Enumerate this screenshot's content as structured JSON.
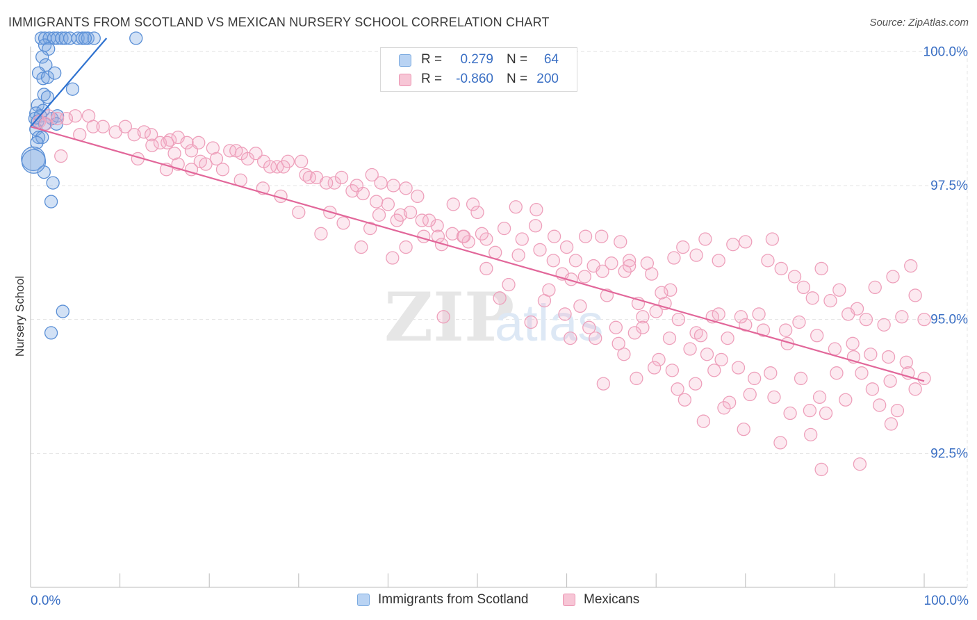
{
  "header": {
    "title": "IMMIGRANTS FROM SCOTLAND VS MEXICAN NURSERY SCHOOL CORRELATION CHART",
    "source": "Source: ZipAtlas.com"
  },
  "watermark": {
    "zip": "ZIP",
    "atlas": "atlas"
  },
  "legend": {
    "r_label": "R =",
    "n_label": "N =",
    "series": [
      {
        "name": "Immigrants from Scotland",
        "r": "0.279",
        "n": "64",
        "color": "#7aaae0",
        "fill": "#b9d3f3"
      },
      {
        "name": "Mexicans",
        "r": "-0.860",
        "n": "200",
        "color": "#eb92b0",
        "fill": "#f7c6d6"
      }
    ]
  },
  "chart_data": {
    "type": "scatter",
    "title": "IMMIGRANTS FROM SCOTLAND VS MEXICAN NURSERY SCHOOL CORRELATION CHART",
    "xlabel": "",
    "ylabel": "Nursery School",
    "xlim": [
      0,
      100
    ],
    "ylim": [
      90.0,
      100.25
    ],
    "x_tick_labels": [
      "0.0%",
      "100.0%"
    ],
    "y_ticks": [
      {
        "value": 100.0,
        "label": "100.0%"
      },
      {
        "value": 97.5,
        "label": "97.5%"
      },
      {
        "value": 95.0,
        "label": "95.0%"
      },
      {
        "value": 92.5,
        "label": "92.5%"
      }
    ],
    "grid": true,
    "series": [
      {
        "name": "Immigrants from Scotland",
        "color": "#4a86d8",
        "trend": {
          "x": [
            0.0,
            8.5
          ],
          "y": [
            98.6,
            100.25
          ]
        },
        "points": [
          [
            1.2,
            100.25
          ],
          [
            1.6,
            100.25
          ],
          [
            2.1,
            100.25
          ],
          [
            2.6,
            100.25
          ],
          [
            3.0,
            100.25
          ],
          [
            3.5,
            100.25
          ],
          [
            3.9,
            100.25
          ],
          [
            4.4,
            100.25
          ],
          [
            5.3,
            100.25
          ],
          [
            5.8,
            100.25
          ],
          [
            6.4,
            100.25
          ],
          [
            7.1,
            100.25
          ],
          [
            6.1,
            100.25
          ],
          [
            11.8,
            100.25
          ],
          [
            1.6,
            100.12
          ],
          [
            2.0,
            100.05
          ],
          [
            1.3,
            99.9
          ],
          [
            1.7,
            99.75
          ],
          [
            0.9,
            99.6
          ],
          [
            1.4,
            99.5
          ],
          [
            1.9,
            99.52
          ],
          [
            2.7,
            99.6
          ],
          [
            4.7,
            99.3
          ],
          [
            1.5,
            99.2
          ],
          [
            1.9,
            99.15
          ],
          [
            0.8,
            99.0
          ],
          [
            1.4,
            98.9
          ],
          [
            0.6,
            98.85
          ],
          [
            1.1,
            98.8
          ],
          [
            2.4,
            98.75
          ],
          [
            3.0,
            98.8
          ],
          [
            0.5,
            98.75
          ],
          [
            0.8,
            98.7
          ],
          [
            1.6,
            98.65
          ],
          [
            2.9,
            98.65
          ],
          [
            0.6,
            98.55
          ],
          [
            0.9,
            98.4
          ],
          [
            1.3,
            98.4
          ],
          [
            0.7,
            98.3
          ],
          [
            0.3,
            98.0
          ],
          [
            1.5,
            97.75
          ],
          [
            2.5,
            97.55
          ],
          [
            2.3,
            97.2
          ],
          [
            3.6,
            95.15
          ],
          [
            2.3,
            94.75
          ],
          [
            0.35,
            97.95
          ]
        ]
      },
      {
        "name": "Mexicans",
        "color": "#e8739a",
        "trend": {
          "x": [
            0.0,
            100.0
          ],
          "y": [
            98.6,
            93.85
          ]
        },
        "points": [
          [
            1.0,
            98.7
          ],
          [
            2.0,
            98.8
          ],
          [
            3.0,
            98.75
          ],
          [
            5.0,
            98.8
          ],
          [
            6.5,
            98.8
          ],
          [
            4.0,
            98.75
          ],
          [
            1.7,
            98.65
          ],
          [
            3.4,
            98.05
          ],
          [
            5.5,
            98.45
          ],
          [
            7.0,
            98.6
          ],
          [
            8.1,
            98.6
          ],
          [
            9.5,
            98.5
          ],
          [
            10.6,
            98.6
          ],
          [
            11.6,
            98.45
          ],
          [
            12.7,
            98.5
          ],
          [
            13.5,
            98.45
          ],
          [
            14.5,
            98.3
          ],
          [
            15.6,
            98.35
          ],
          [
            16.5,
            98.4
          ],
          [
            17.5,
            98.3
          ],
          [
            18.8,
            98.3
          ],
          [
            20.4,
            98.2
          ],
          [
            22.3,
            98.15
          ],
          [
            23.6,
            98.1
          ],
          [
            24.3,
            98.0
          ],
          [
            26.1,
            97.95
          ],
          [
            27.6,
            97.85
          ],
          [
            28.8,
            97.95
          ],
          [
            30.8,
            97.7
          ],
          [
            32.0,
            97.65
          ],
          [
            34.0,
            97.55
          ],
          [
            36.0,
            97.4
          ],
          [
            37.2,
            97.35
          ],
          [
            38.7,
            97.2
          ],
          [
            40.0,
            97.15
          ],
          [
            41.4,
            96.95
          ],
          [
            42.5,
            97.0
          ],
          [
            43.8,
            96.85
          ],
          [
            45.5,
            96.75
          ],
          [
            47.2,
            96.6
          ],
          [
            49.0,
            96.45
          ],
          [
            51.0,
            96.5
          ],
          [
            12.0,
            98.0
          ],
          [
            13.6,
            98.25
          ],
          [
            15.3,
            98.3
          ],
          [
            16.1,
            98.1
          ],
          [
            18.0,
            98.15
          ],
          [
            19.0,
            97.95
          ],
          [
            20.8,
            98.0
          ],
          [
            23.0,
            98.15
          ],
          [
            25.2,
            98.1
          ],
          [
            26.8,
            97.85
          ],
          [
            28.3,
            97.85
          ],
          [
            30.3,
            97.95
          ],
          [
            31.2,
            97.65
          ],
          [
            33.1,
            97.55
          ],
          [
            34.8,
            97.65
          ],
          [
            36.5,
            97.5
          ],
          [
            38.2,
            97.7
          ],
          [
            39.2,
            97.55
          ],
          [
            40.6,
            97.5
          ],
          [
            42.0,
            97.45
          ],
          [
            43.3,
            97.3
          ],
          [
            41.0,
            96.85
          ],
          [
            39.0,
            96.95
          ],
          [
            38.0,
            96.7
          ],
          [
            44.6,
            96.85
          ],
          [
            45.6,
            96.55
          ],
          [
            47.3,
            97.15
          ],
          [
            49.5,
            97.15
          ],
          [
            48.4,
            96.55
          ],
          [
            50.5,
            96.6
          ],
          [
            52.0,
            96.25
          ],
          [
            53.0,
            96.7
          ],
          [
            55.0,
            96.5
          ],
          [
            56.5,
            96.75
          ],
          [
            58.6,
            96.55
          ],
          [
            60.0,
            96.35
          ],
          [
            62.1,
            96.55
          ],
          [
            63.9,
            96.55
          ],
          [
            66.0,
            96.45
          ],
          [
            58.5,
            96.1
          ],
          [
            57.0,
            96.3
          ],
          [
            59.5,
            95.85
          ],
          [
            54.6,
            96.2
          ],
          [
            53.5,
            95.65
          ],
          [
            51.0,
            95.95
          ],
          [
            52.5,
            95.4
          ],
          [
            61.0,
            96.1
          ],
          [
            63.0,
            96.0
          ],
          [
            65.0,
            96.05
          ],
          [
            67.0,
            96.1
          ],
          [
            69.5,
            95.85
          ],
          [
            71.6,
            95.55
          ],
          [
            66.5,
            95.9
          ],
          [
            68.0,
            95.3
          ],
          [
            64.5,
            95.45
          ],
          [
            61.5,
            95.25
          ],
          [
            59.8,
            95.1
          ],
          [
            57.5,
            95.35
          ],
          [
            56.0,
            94.95
          ],
          [
            70.0,
            95.15
          ],
          [
            72.5,
            95.0
          ],
          [
            74.5,
            94.75
          ],
          [
            68.5,
            95.05
          ],
          [
            65.5,
            94.85
          ],
          [
            71.0,
            95.3
          ],
          [
            75.0,
            94.7
          ],
          [
            77.0,
            95.1
          ],
          [
            78.0,
            94.65
          ],
          [
            80.0,
            94.9
          ],
          [
            82.0,
            94.8
          ],
          [
            84.5,
            94.8
          ],
          [
            86.0,
            94.95
          ],
          [
            88.0,
            94.7
          ],
          [
            90.0,
            94.45
          ],
          [
            92.0,
            94.55
          ],
          [
            94.0,
            94.35
          ],
          [
            96.0,
            94.3
          ],
          [
            98.0,
            94.2
          ],
          [
            100.0,
            93.9
          ],
          [
            79.5,
            95.05
          ],
          [
            81.5,
            95.1
          ],
          [
            76.3,
            95.05
          ],
          [
            73.0,
            96.35
          ],
          [
            75.5,
            96.5
          ],
          [
            78.6,
            96.4
          ],
          [
            80.0,
            96.45
          ],
          [
            82.5,
            96.1
          ],
          [
            84.0,
            95.95
          ],
          [
            86.5,
            95.6
          ],
          [
            88.5,
            95.95
          ],
          [
            90.5,
            95.55
          ],
          [
            92.5,
            95.2
          ],
          [
            94.5,
            95.6
          ],
          [
            96.5,
            95.8
          ],
          [
            98.5,
            96.0
          ],
          [
            100.0,
            95.0
          ],
          [
            83.0,
            96.5
          ],
          [
            77.0,
            96.1
          ],
          [
            74.5,
            96.2
          ],
          [
            72.0,
            96.15
          ],
          [
            69.0,
            96.05
          ],
          [
            67.0,
            96.0
          ],
          [
            64.0,
            95.9
          ],
          [
            62.0,
            95.8
          ],
          [
            60.5,
            95.75
          ],
          [
            58.0,
            95.55
          ],
          [
            85.5,
            95.8
          ],
          [
            87.5,
            95.4
          ],
          [
            89.5,
            95.35
          ],
          [
            91.5,
            95.1
          ],
          [
            93.5,
            95.0
          ],
          [
            95.5,
            94.9
          ],
          [
            97.5,
            95.05
          ],
          [
            99.0,
            95.45
          ],
          [
            70.6,
            95.5
          ],
          [
            46.2,
            95.05
          ],
          [
            46.0,
            96.4
          ],
          [
            48.5,
            96.55
          ],
          [
            50.0,
            97.0
          ],
          [
            44.0,
            96.55
          ],
          [
            42.0,
            96.35
          ],
          [
            40.5,
            96.15
          ],
          [
            35.0,
            96.8
          ],
          [
            37.0,
            96.35
          ],
          [
            33.5,
            97.0
          ],
          [
            32.5,
            96.6
          ],
          [
            30.0,
            97.0
          ],
          [
            28.0,
            97.3
          ],
          [
            26.0,
            97.45
          ],
          [
            23.5,
            97.6
          ],
          [
            21.5,
            97.8
          ],
          [
            19.6,
            97.9
          ],
          [
            18.0,
            97.8
          ],
          [
            16.5,
            97.9
          ],
          [
            15.2,
            97.8
          ],
          [
            54.3,
            97.1
          ],
          [
            56.6,
            97.05
          ],
          [
            63.2,
            94.65
          ],
          [
            66.4,
            94.35
          ],
          [
            68.5,
            94.85
          ],
          [
            70.3,
            94.25
          ],
          [
            71.5,
            94.65
          ],
          [
            73.8,
            94.45
          ],
          [
            75.7,
            94.35
          ],
          [
            77.3,
            94.25
          ],
          [
            79.2,
            94.1
          ],
          [
            81.0,
            93.9
          ],
          [
            83.2,
            93.55
          ],
          [
            85.0,
            93.25
          ],
          [
            87.2,
            93.3
          ],
          [
            89.0,
            93.25
          ],
          [
            91.2,
            93.5
          ],
          [
            93.0,
            94.0
          ],
          [
            95.0,
            93.4
          ],
          [
            97.0,
            93.3
          ],
          [
            99.0,
            93.7
          ],
          [
            64.1,
            93.8
          ],
          [
            67.8,
            93.9
          ],
          [
            69.8,
            94.1
          ],
          [
            72.4,
            93.7
          ],
          [
            74.4,
            93.8
          ],
          [
            76.5,
            94.05
          ],
          [
            78.2,
            93.45
          ],
          [
            80.5,
            93.6
          ],
          [
            82.8,
            94.0
          ],
          [
            84.7,
            94.55
          ],
          [
            86.2,
            93.9
          ],
          [
            88.3,
            93.55
          ],
          [
            90.2,
            94.0
          ],
          [
            92.1,
            94.3
          ],
          [
            94.2,
            93.7
          ],
          [
            96.2,
            93.85
          ],
          [
            98.2,
            94.0
          ],
          [
            60.4,
            94.65
          ],
          [
            62.5,
            94.85
          ],
          [
            65.8,
            94.55
          ],
          [
            67.6,
            94.75
          ],
          [
            71.8,
            94.05
          ],
          [
            73.2,
            93.5
          ],
          [
            75.3,
            93.1
          ],
          [
            77.6,
            93.35
          ],
          [
            79.8,
            92.95
          ],
          [
            83.9,
            92.7
          ],
          [
            87.3,
            92.85
          ],
          [
            88.5,
            92.2
          ],
          [
            92.8,
            92.3
          ],
          [
            96.3,
            93.05
          ]
        ]
      }
    ]
  },
  "bottom_legend": [
    {
      "label": "Immigrants from Scotland"
    },
    {
      "label": "Mexicans"
    }
  ]
}
